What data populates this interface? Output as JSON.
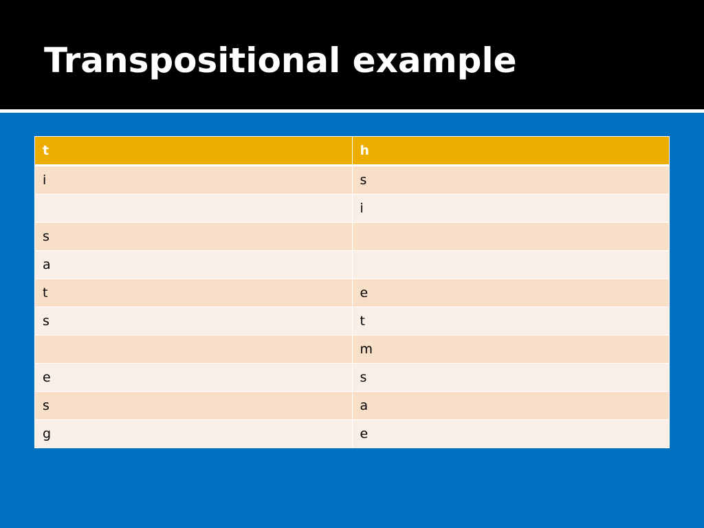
{
  "slide": {
    "title": "Transpositional example"
  },
  "table": {
    "header": [
      "t",
      "h"
    ],
    "rows": [
      [
        "i",
        "s"
      ],
      [
        "",
        "i"
      ],
      [
        "s",
        ""
      ],
      [
        "a",
        ""
      ],
      [
        "t",
        "e"
      ],
      [
        "s",
        "t"
      ],
      [
        "",
        "m"
      ],
      [
        "e",
        "s"
      ],
      [
        "s",
        "a"
      ],
      [
        "g",
        "e"
      ]
    ]
  },
  "colors": {
    "background": "#0070c0",
    "title_bar": "#000000",
    "header_fill": "#edad00",
    "row_odd": "#f8e0c8",
    "row_even": "#f9efe6"
  }
}
